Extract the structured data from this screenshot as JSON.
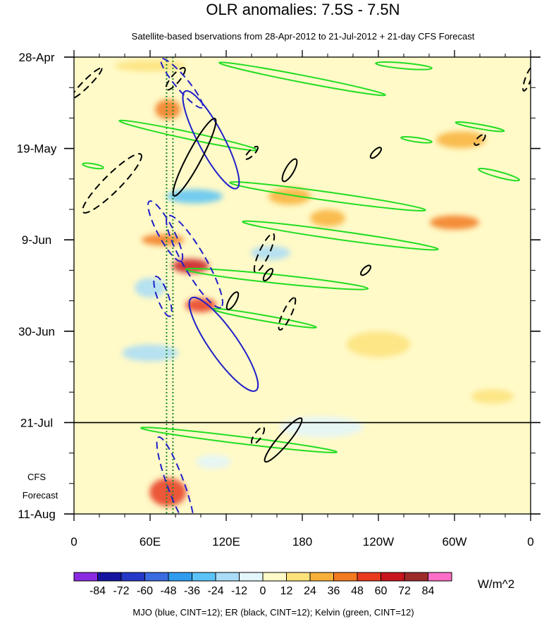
{
  "chart_data": {
    "type": "heatmap",
    "title": "OLR anomalies: 7.5S - 7.5N",
    "subtitle": "Satellite-based bservations from 28-Apr-2012 to 21-Jul-2012 + 21-day CFS Forecast",
    "x_tick_labels": [
      "0",
      "60E",
      "120E",
      "180",
      "120W",
      "60W",
      "0"
    ],
    "x_tick_values_deg_east": [
      0,
      60,
      120,
      180,
      240,
      300,
      360
    ],
    "y_tick_labels": [
      "28-Apr",
      "19-May",
      "9-Jun",
      "30-Jun",
      "21-Jul",
      "11-Aug"
    ],
    "y_tick_values": [
      "2012-04-28",
      "2012-05-19",
      "2012-06-09",
      "2012-06-30",
      "2012-07-21",
      "2012-08-11"
    ],
    "xlim_deg_east": [
      0,
      360
    ],
    "ylim": [
      "2012-04-28",
      "2012-08-11"
    ],
    "y_reversed": true,
    "observation_end": "2012-07-21",
    "forecast_label_lines": [
      "CFS",
      "Forecast"
    ],
    "colorbar": {
      "unit": "W/m^2",
      "levels": [
        "-84",
        "-72",
        "-60",
        "-48",
        "-36",
        "-24",
        "-12",
        "0",
        "12",
        "24",
        "36",
        "48",
        "60",
        "72",
        "84"
      ],
      "colors": [
        "#8a2be2",
        "#1414a0",
        "#2538c8",
        "#3a6be0",
        "#2f9cf0",
        "#5bc3f7",
        "#a9dcf7",
        "#e3f6fb",
        "#fffac8",
        "#fde27a",
        "#f8b03a",
        "#f27a20",
        "#e8391f",
        "#c8151e",
        "#9e2a2a",
        "#ff6ec7"
      ]
    },
    "reference_lines_deg_east": [
      73,
      78
    ],
    "reference_line_color": "#1a8a2a",
    "contour_legend": "MJO (blue, CINT=12); ER (black, CINT=12); Kelvin (green, CINT=12)",
    "contour_colors": {
      "mjo": "#2020c8",
      "er": "#000000",
      "kelvin": "#22dd22"
    },
    "mjo_contours": [
      {
        "lon": 108,
        "date": "2012-05-17",
        "rx": 78,
        "ry": 18,
        "angle_deg": 62,
        "dashed": false
      },
      {
        "lon": 118,
        "date": "2012-07-03",
        "rx": 80,
        "ry": 20,
        "angle_deg": 55,
        "dashed": false
      },
      {
        "lon": 95,
        "date": "2012-06-14",
        "rx": 75,
        "ry": 16,
        "angle_deg": 60,
        "dashed": true
      },
      {
        "lon": 72,
        "date": "2012-06-07",
        "rx": 48,
        "ry": 11,
        "angle_deg": 62,
        "dashed": true
      },
      {
        "lon": 80,
        "date": "2012-08-04",
        "rx": 70,
        "ry": 12,
        "angle_deg": 70,
        "dashed": true
      },
      {
        "lon": 85,
        "date": "2012-05-04",
        "rx": 45,
        "ry": 9,
        "angle_deg": 50,
        "dashed": true
      },
      {
        "lon": 70,
        "date": "2012-06-22",
        "rx": 30,
        "ry": 8,
        "angle_deg": 70,
        "dashed": true
      }
    ],
    "er_contours": [
      {
        "lon": 95,
        "date": "2012-05-21",
        "rx": 62,
        "ry": 10,
        "angle_deg": -62,
        "dashed": false
      },
      {
        "lon": 165,
        "date": "2012-07-25",
        "rx": 40,
        "ry": 8,
        "angle_deg": -50,
        "dashed": false
      },
      {
        "lon": 30,
        "date": "2012-05-27",
        "rx": 58,
        "ry": 12,
        "angle_deg": -45,
        "dashed": true
      },
      {
        "lon": 150,
        "date": "2012-06-12",
        "rx": 30,
        "ry": 7,
        "angle_deg": -65,
        "dashed": true
      },
      {
        "lon": 168,
        "date": "2012-06-26",
        "rx": 25,
        "ry": 6,
        "angle_deg": -65,
        "dashed": true
      },
      {
        "lon": 170,
        "date": "2012-05-24",
        "rx": 18,
        "ry": 6,
        "angle_deg": -60,
        "dashed": false
      },
      {
        "lon": 10,
        "date": "2012-05-04",
        "rx": 30,
        "ry": 5,
        "angle_deg": -45,
        "dashed": true
      },
      {
        "lon": 80,
        "date": "2012-05-03",
        "rx": 20,
        "ry": 6,
        "angle_deg": -50,
        "dashed": true
      },
      {
        "lon": 145,
        "date": "2012-07-24",
        "rx": 14,
        "ry": 5,
        "angle_deg": -55,
        "dashed": true
      },
      {
        "lon": 230,
        "date": "2012-06-16",
        "rx": 9,
        "ry": 4,
        "angle_deg": -45,
        "dashed": false
      },
      {
        "lon": 238,
        "date": "2012-05-20",
        "rx": 10,
        "ry": 4,
        "angle_deg": -45,
        "dashed": false
      },
      {
        "lon": 320,
        "date": "2012-05-17",
        "rx": 10,
        "ry": 4,
        "angle_deg": -45,
        "dashed": true
      },
      {
        "lon": 358,
        "date": "2012-05-03",
        "rx": 18,
        "ry": 4,
        "angle_deg": -70,
        "dashed": true
      },
      {
        "lon": 140,
        "date": "2012-05-20",
        "rx": 12,
        "ry": 4,
        "angle_deg": -45,
        "dashed": true
      },
      {
        "lon": 125,
        "date": "2012-06-23",
        "rx": 14,
        "ry": 5,
        "angle_deg": -60,
        "dashed": false
      },
      {
        "lon": 153,
        "date": "2012-06-17",
        "rx": 10,
        "ry": 4,
        "angle_deg": -55,
        "dashed": false
      }
    ],
    "kelvin_contours": [
      {
        "lon": 180,
        "date": "2012-05-03",
        "rx": 120,
        "ry": 5,
        "angle_deg": 11,
        "dashed": false
      },
      {
        "lon": 90,
        "date": "2012-05-16",
        "rx": 100,
        "ry": 5,
        "angle_deg": 12,
        "dashed": false
      },
      {
        "lon": 200,
        "date": "2012-05-30",
        "rx": 140,
        "ry": 6,
        "angle_deg": 8,
        "dashed": false
      },
      {
        "lon": 210,
        "date": "2012-06-08",
        "rx": 140,
        "ry": 6,
        "angle_deg": 8,
        "dashed": false
      },
      {
        "lon": 160,
        "date": "2012-06-18",
        "rx": 130,
        "ry": 6,
        "angle_deg": 6,
        "dashed": false
      },
      {
        "lon": 150,
        "date": "2012-06-27",
        "rx": 75,
        "ry": 4,
        "angle_deg": 10,
        "dashed": false
      },
      {
        "lon": 130,
        "date": "2012-07-25",
        "rx": 140,
        "ry": 5,
        "angle_deg": 7,
        "dashed": false
      },
      {
        "lon": 320,
        "date": "2012-05-14",
        "rx": 35,
        "ry": 3,
        "angle_deg": 10,
        "dashed": false
      },
      {
        "lon": 260,
        "date": "2012-04-30",
        "rx": 40,
        "ry": 4,
        "angle_deg": 5,
        "dashed": false
      },
      {
        "lon": 335,
        "date": "2012-05-25",
        "rx": 30,
        "ry": 4,
        "angle_deg": 15,
        "dashed": false
      },
      {
        "lon": 15,
        "date": "2012-05-23",
        "rx": 15,
        "ry": 3,
        "angle_deg": 10,
        "dashed": false
      },
      {
        "lon": 270,
        "date": "2012-05-17",
        "rx": 22,
        "ry": 3,
        "angle_deg": 8,
        "dashed": false
      }
    ],
    "anomaly_blobs": [
      {
        "lon": 92,
        "date": "2012-06-15",
        "rx": 26,
        "ry": 10,
        "value": 60
      },
      {
        "lon": 100,
        "date": "2012-06-24",
        "rx": 22,
        "ry": 10,
        "value": 48
      },
      {
        "lon": 70,
        "date": "2012-06-09",
        "rx": 30,
        "ry": 8,
        "value": 36
      },
      {
        "lon": 74,
        "date": "2012-08-06",
        "rx": 26,
        "ry": 20,
        "value": 48
      },
      {
        "lon": 74,
        "date": "2012-05-10",
        "rx": 18,
        "ry": 14,
        "value": 36
      },
      {
        "lon": 60,
        "date": "2012-06-20",
        "rx": 22,
        "ry": 14,
        "value": -24
      },
      {
        "lon": 155,
        "date": "2012-06-12",
        "rx": 28,
        "ry": 10,
        "value": -24
      },
      {
        "lon": 170,
        "date": "2012-05-30",
        "rx": 30,
        "ry": 12,
        "value": 24
      },
      {
        "lon": 200,
        "date": "2012-06-04",
        "rx": 25,
        "ry": 12,
        "value": 24
      },
      {
        "lon": 240,
        "date": "2012-07-03",
        "rx": 45,
        "ry": 18,
        "value": 12
      },
      {
        "lon": 305,
        "date": "2012-05-17",
        "rx": 35,
        "ry": 12,
        "value": 24
      },
      {
        "lon": 300,
        "date": "2012-06-05",
        "rx": 35,
        "ry": 10,
        "value": 36
      },
      {
        "lon": 95,
        "date": "2012-05-30",
        "rx": 40,
        "ry": 10,
        "value": -36
      },
      {
        "lon": 60,
        "date": "2012-07-05",
        "rx": 40,
        "ry": 12,
        "value": -24
      },
      {
        "lon": 110,
        "date": "2012-07-30",
        "rx": 25,
        "ry": 10,
        "value": -12
      },
      {
        "lon": 60,
        "date": "2012-04-30",
        "rx": 50,
        "ry": 8,
        "value": 12
      },
      {
        "lon": 195,
        "date": "2012-07-22",
        "rx": 60,
        "ry": 15,
        "value": -12
      },
      {
        "lon": 330,
        "date": "2012-07-15",
        "rx": 30,
        "ry": 10,
        "value": 12
      }
    ]
  }
}
